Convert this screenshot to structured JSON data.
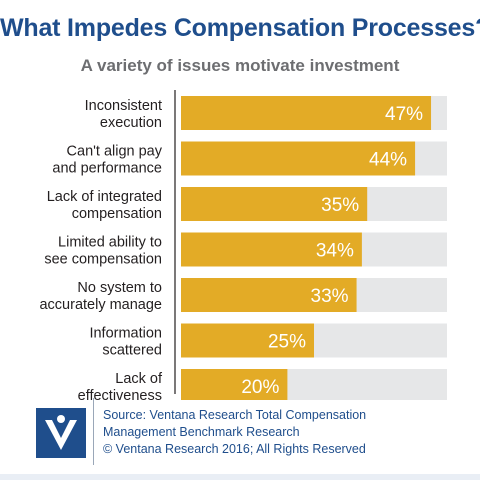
{
  "title": "What Impedes Compensation Processes?",
  "subtitle": "A variety of issues motivate investment",
  "chart_data": {
    "type": "bar",
    "orientation": "horizontal",
    "categories": [
      [
        "Inconsistent",
        "execution"
      ],
      [
        "Can't align pay",
        "and performance"
      ],
      [
        "Lack of integrated",
        "compensation"
      ],
      [
        "Limited ability to",
        "see compensation"
      ],
      [
        "No system to",
        "accurately manage"
      ],
      [
        "Information",
        "scattered"
      ],
      [
        "Lack of",
        "effectiveness"
      ]
    ],
    "values": [
      47,
      44,
      35,
      34,
      33,
      25,
      20
    ],
    "value_labels": [
      "47%",
      "44%",
      "35%",
      "34%",
      "33%",
      "25%",
      "20%"
    ],
    "xlim": [
      0,
      50
    ],
    "bar_color": "#e3ab26",
    "track_color": "#e6e7e8",
    "grid": false,
    "legend": "none"
  },
  "footer": {
    "lines": [
      "Source: Ventana Research Total Compensation",
      "Management Benchmark Research",
      "© Ventana Research 2016; All Rights Reserved"
    ]
  },
  "colors": {
    "title": "#1f4e8c",
    "subtitle": "#6d6e71",
    "logo_blue": "#1f4e8c"
  },
  "logo": {
    "icon": "ventana-v-logo-icon"
  }
}
